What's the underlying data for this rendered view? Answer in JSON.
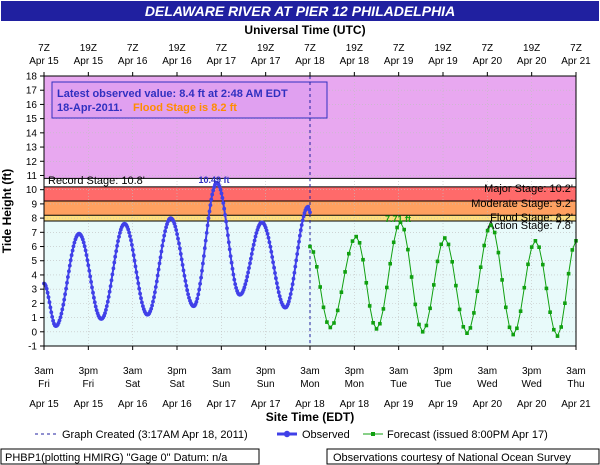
{
  "title": "DELAWARE RIVER AT PIER 12 PHILADELPHIA",
  "top_axis_title": "Universal Time (UTC)",
  "bottom_axis_title": "Site Time (EDT)",
  "y_axis_title": "Tide Height (ft)",
  "info_box": {
    "line1": "Latest observed value: 8.4 ft at 2:48 AM EDT",
    "line2_date": "18-Apr-2011.",
    "line2_flood": "Flood Stage is 8.2 ft"
  },
  "stages": {
    "record": "Record Stage: 10.8'",
    "major": "Major Stage: 10.2'",
    "moderate": "Moderate Stage: 9.2'",
    "flood": "Flood Stage: 8.2'",
    "action": "Action Stage: 7.8'"
  },
  "peak_labels": {
    "observed_peak": "10.49 ft",
    "forecast_peak": "7.71 ft"
  },
  "legend": {
    "graph_created": "Graph Created (3:17AM Apr 18, 2011)",
    "observed": "Observed",
    "forecast": "Forecast (issued 8:00PM Apr 17)"
  },
  "footer": {
    "left": "PHBP1(plotting HMIRG) \"Gage 0\" Datum: n/a",
    "right": "Observations courtesy of National Ocean Survey"
  },
  "colors": {
    "background": "#ffffff",
    "title_bar": "#2020a0",
    "record_zone": "#e8a8f0",
    "major_zone": "#ff6a6a",
    "moderate_zone": "#ffa060",
    "flood_zone": "#ffe080",
    "normal_zone": "#e8fafa",
    "observed": "#4040e8",
    "forecast": "#10a010",
    "info_text": "#3030c0",
    "flood_text": "#ff8c00"
  },
  "chart_data": {
    "type": "line",
    "ylabel": "Tide Height (ft)",
    "xlabel": "Site Time (EDT)",
    "ylim": [
      -1,
      18
    ],
    "yticks": [
      -1,
      0,
      1,
      2,
      3,
      4,
      5,
      6,
      7,
      8,
      9,
      10,
      11,
      12,
      13,
      14,
      15,
      16,
      17,
      18
    ],
    "x_axis_hours_range": [
      0,
      144
    ],
    "bottom_ticks": [
      {
        "h": 0,
        "t": "3am",
        "d": "Fri",
        "date": "Apr 15"
      },
      {
        "h": 12,
        "t": "3pm",
        "d": "Fri",
        "date": "Apr 15"
      },
      {
        "h": 24,
        "t": "3am",
        "d": "Sat",
        "date": "Apr 16"
      },
      {
        "h": 36,
        "t": "3pm",
        "d": "Sat",
        "date": "Apr 16"
      },
      {
        "h": 48,
        "t": "3am",
        "d": "Sun",
        "date": "Apr 17"
      },
      {
        "h": 60,
        "t": "3pm",
        "d": "Sun",
        "date": "Apr 17"
      },
      {
        "h": 72,
        "t": "3am",
        "d": "Mon",
        "date": "Apr 18"
      },
      {
        "h": 84,
        "t": "3pm",
        "d": "Mon",
        "date": "Apr 18"
      },
      {
        "h": 96,
        "t": "3am",
        "d": "Tue",
        "date": "Apr 19"
      },
      {
        "h": 108,
        "t": "3pm",
        "d": "Tue",
        "date": "Apr 19"
      },
      {
        "h": 120,
        "t": "3am",
        "d": "Wed",
        "date": "Apr 20"
      },
      {
        "h": 132,
        "t": "3pm",
        "d": "Wed",
        "date": "Apr 20"
      },
      {
        "h": 144,
        "t": "3am",
        "d": "Thu",
        "date": "Apr 21"
      }
    ],
    "top_ticks": [
      {
        "h": 0,
        "t": "7Z",
        "date": "Apr 15"
      },
      {
        "h": 12,
        "t": "19Z",
        "date": "Apr 15"
      },
      {
        "h": 24,
        "t": "7Z",
        "date": "Apr 16"
      },
      {
        "h": 36,
        "t": "19Z",
        "date": "Apr 16"
      },
      {
        "h": 48,
        "t": "7Z",
        "date": "Apr 17"
      },
      {
        "h": 60,
        "t": "19Z",
        "date": "Apr 17"
      },
      {
        "h": 72,
        "t": "7Z",
        "date": "Apr 18"
      },
      {
        "h": 84,
        "t": "19Z",
        "date": "Apr 18"
      },
      {
        "h": 96,
        "t": "7Z",
        "date": "Apr 19"
      },
      {
        "h": 108,
        "t": "19Z",
        "date": "Apr 19"
      },
      {
        "h": 120,
        "t": "7Z",
        "date": "Apr 20"
      },
      {
        "h": 132,
        "t": "19Z",
        "date": "Apr 20"
      },
      {
        "h": 144,
        "t": "7Z",
        "date": "Apr 21"
      }
    ],
    "stage_thresholds": {
      "action": 7.8,
      "flood": 8.2,
      "moderate": 9.2,
      "major": 10.2,
      "record": 10.8
    },
    "graph_created_hour": 72,
    "observed_extrema": [
      {
        "h": 0,
        "v": 3.4
      },
      {
        "h": 3.2,
        "v": 0.4
      },
      {
        "h": 9.5,
        "v": 6.9
      },
      {
        "h": 15.5,
        "v": 0.9
      },
      {
        "h": 21.8,
        "v": 7.6
      },
      {
        "h": 28,
        "v": 1.2
      },
      {
        "h": 34.3,
        "v": 8.0
      },
      {
        "h": 40.5,
        "v": 1.8
      },
      {
        "h": 46.8,
        "v": 10.49
      },
      {
        "h": 53,
        "v": 2.6
      },
      {
        "h": 59,
        "v": 7.7
      },
      {
        "h": 65.3,
        "v": 1.7
      },
      {
        "h": 71.5,
        "v": 8.8
      },
      {
        "h": 72,
        "v": 8.4
      }
    ],
    "forecast_extrema": [
      {
        "h": 72,
        "v": 6.0
      },
      {
        "h": 77.5,
        "v": 0.3
      },
      {
        "h": 84.5,
        "v": 6.7
      },
      {
        "h": 90,
        "v": 0.2
      },
      {
        "h": 96.5,
        "v": 7.71
      },
      {
        "h": 102.5,
        "v": 0.0
      },
      {
        "h": 108.5,
        "v": 6.6
      },
      {
        "h": 114.5,
        "v": -0.1
      },
      {
        "h": 121,
        "v": 7.5
      },
      {
        "h": 127,
        "v": -0.2
      },
      {
        "h": 133,
        "v": 6.4
      },
      {
        "h": 139,
        "v": -0.3
      },
      {
        "h": 144,
        "v": 6.4
      }
    ]
  }
}
